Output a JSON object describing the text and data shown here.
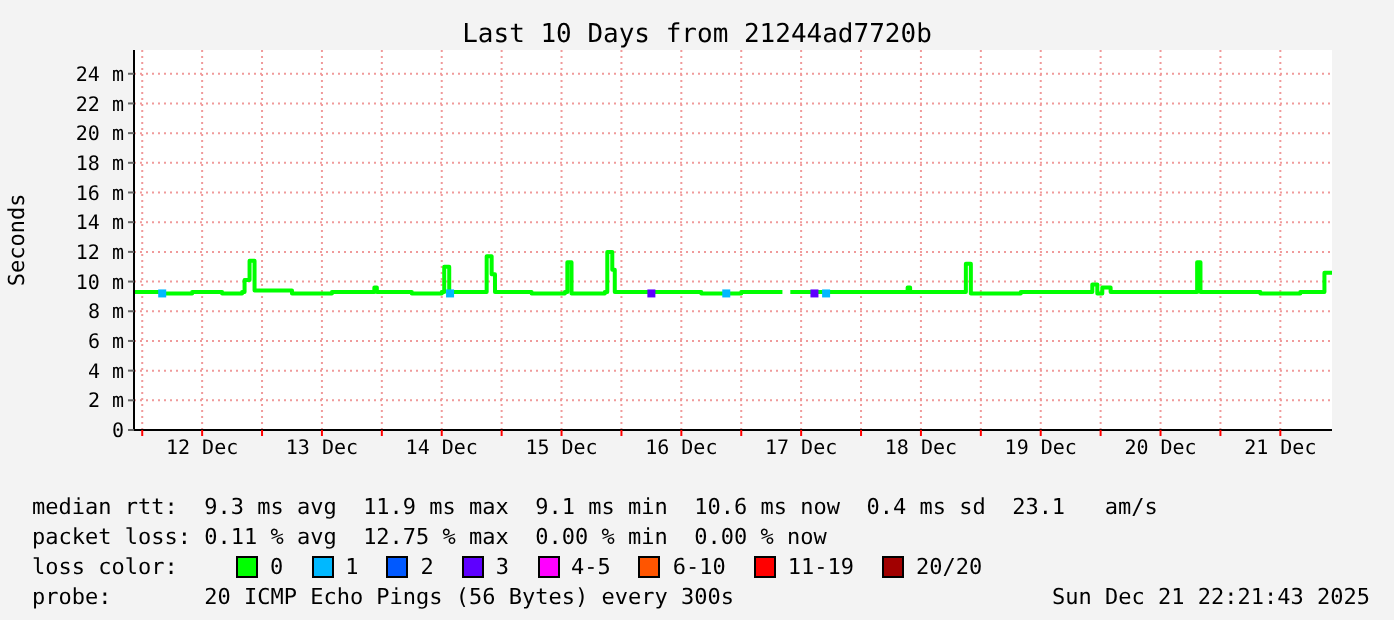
{
  "chart_data": {
    "type": "step",
    "title": "Last 10 Days from 21244ad7720b",
    "ylabel": "Seconds",
    "xlim": [
      "2025-12-11T22:21",
      "2025-12-21T22:21"
    ],
    "xticks": [
      {
        "value": "2025-12-12T00:00",
        "label": null
      },
      {
        "value": "2025-12-12T12:00",
        "label": "12 Dec"
      },
      {
        "value": "2025-12-13T00:00",
        "label": null
      },
      {
        "value": "2025-12-13T12:00",
        "label": "13 Dec"
      },
      {
        "value": "2025-12-14T00:00",
        "label": null
      },
      {
        "value": "2025-12-14T12:00",
        "label": "14 Dec"
      },
      {
        "value": "2025-12-15T00:00",
        "label": null
      },
      {
        "value": "2025-12-15T12:00",
        "label": "15 Dec"
      },
      {
        "value": "2025-12-16T00:00",
        "label": null
      },
      {
        "value": "2025-12-16T12:00",
        "label": "16 Dec"
      },
      {
        "value": "2025-12-17T00:00",
        "label": null
      },
      {
        "value": "2025-12-17T12:00",
        "label": "17 Dec"
      },
      {
        "value": "2025-12-18T00:00",
        "label": null
      },
      {
        "value": "2025-12-18T12:00",
        "label": "18 Dec"
      },
      {
        "value": "2025-12-19T00:00",
        "label": null
      },
      {
        "value": "2025-12-19T12:00",
        "label": "19 Dec"
      },
      {
        "value": "2025-12-20T00:00",
        "label": null
      },
      {
        "value": "2025-12-20T12:00",
        "label": "20 Dec"
      },
      {
        "value": "2025-12-21T00:00",
        "label": null
      },
      {
        "value": "2025-12-21T12:00",
        "label": "21 Dec"
      }
    ],
    "ylim": [
      0,
      25.6
    ],
    "yticks": [
      0,
      {
        "value": 2,
        "label": "2 m"
      },
      {
        "value": 4,
        "label": "4 m"
      },
      {
        "value": 6,
        "label": "6 m"
      },
      {
        "value": 8,
        "label": "8 m"
      },
      {
        "value": 10,
        "label": "10 m"
      },
      {
        "value": 12,
        "label": "12 m"
      },
      {
        "value": 14,
        "label": "14 m"
      },
      {
        "value": 16,
        "label": "16 m"
      },
      {
        "value": 18,
        "label": "18 m"
      },
      {
        "value": 20,
        "label": "20 m"
      },
      {
        "value": 22,
        "label": "22 m"
      },
      {
        "value": 24,
        "label": "24 m"
      }
    ],
    "grid": true,
    "legend": "bottom",
    "legend_title": "loss color:",
    "series": [
      {
        "name": "0",
        "color": "#00ff00",
        "x": [
          "2025-12-11T22:21",
          "2025-12-12T04:00",
          "2025-12-12T10:00",
          "2025-12-12T16:00",
          "2025-12-12T20:00",
          "2025-12-12T20:30",
          "2025-12-12T21:30",
          "2025-12-12T22:30",
          "2025-12-13T06:00",
          "2025-12-13T14:00",
          "2025-12-13T22:00",
          "2025-12-13T22:30",
          "2025-12-13T23:00",
          "2025-12-14T06:00",
          "2025-12-14T12:00",
          "2025-12-14T12:30",
          "2025-12-14T13:30",
          "2025-12-14T20:30",
          "2025-12-14T21:00",
          "2025-12-14T22:00",
          "2025-12-14T22:40",
          "2025-12-15T06:00",
          "2025-12-15T12:40",
          "2025-12-15T13:10",
          "2025-12-15T14:00",
          "2025-12-15T20:40",
          "2025-12-15T21:10",
          "2025-12-15T22:10",
          "2025-12-15T22:40",
          "2025-12-16T08:00",
          "2025-12-16T16:00",
          "2025-12-17T00:00",
          "2025-12-17T08:15",
          "2025-12-17T08:30",
          "2025-12-17T09:50",
          "2025-12-17T16:00",
          "2025-12-18T02:00",
          "2025-12-18T09:00",
          "2025-12-18T09:20",
          "2025-12-18T09:50",
          "2025-12-18T20:40",
          "2025-12-18T21:00",
          "2025-12-18T22:00",
          "2025-12-19T08:00",
          "2025-12-19T16:00",
          "2025-12-19T22:10",
          "2025-12-19T22:20",
          "2025-12-19T23:20",
          "2025-12-20T00:20",
          "2025-12-20T02:00",
          "2025-12-20T10:00",
          "2025-12-20T19:00",
          "2025-12-20T19:20",
          "2025-12-20T20:00",
          "2025-12-21T08:00",
          "2025-12-21T16:00",
          "2025-12-21T20:40",
          "2025-12-21T20:50",
          "2025-12-21T22:21"
        ],
        "values": [
          9.3,
          9.2,
          9.3,
          9.2,
          9.3,
          10.1,
          11.4,
          9.4,
          9.2,
          9.3,
          9.3,
          9.6,
          9.3,
          9.2,
          9.3,
          11.0,
          9.3,
          9.3,
          11.7,
          10.5,
          9.3,
          9.2,
          9.3,
          11.3,
          9.2,
          9.3,
          12.0,
          10.8,
          9.3,
          9.3,
          9.2,
          9.3,
          9.3,
          null,
          9.3,
          9.3,
          9.3,
          9.3,
          9.6,
          9.3,
          9.3,
          11.2,
          9.2,
          9.3,
          9.3,
          9.3,
          9.8,
          9.2,
          9.6,
          9.3,
          9.3,
          9.3,
          11.3,
          9.3,
          9.2,
          9.3,
          9.3,
          10.6,
          10.6
        ]
      },
      {
        "name": "1",
        "type": "scatter",
        "marker": "square",
        "color": "#00b8ff",
        "x": [
          "2025-12-12T04:00",
          "2025-12-14T13:40",
          "2025-12-16T21:00",
          "2025-12-17T17:00"
        ],
        "values": [
          9.2,
          9.2,
          9.2,
          9.2
        ]
      },
      {
        "name": "2",
        "type": "scatter",
        "marker": "square",
        "color": "#0059ff"
      },
      {
        "name": "3",
        "type": "scatter",
        "marker": "square",
        "color": "#5e00ff",
        "x": [
          "2025-12-16T06:00",
          "2025-12-17T14:40"
        ],
        "values": [
          9.2,
          9.2
        ]
      },
      {
        "name": "4-5",
        "type": "scatter",
        "marker": "square",
        "color": "#ff00ff"
      },
      {
        "name": "6-10",
        "type": "scatter",
        "marker": "square",
        "color": "#ff5500"
      },
      {
        "name": "11-19",
        "type": "scatter",
        "marker": "square",
        "color": "#ff0000"
      },
      {
        "name": "20/20",
        "type": "scatter",
        "marker": "square",
        "color": "#a10000"
      }
    ],
    "annotations": [
      "median rtt:  9.3 ms avg  11.9 ms max  9.1 ms min  10.6 ms now  0.4 ms sd  23.1   am/s",
      "packet loss: 0.11 % avg  12.75 % max  0.00 % min  0.00 % now",
      "probe:       20 ICMP Echo Pings (56 Bytes) every 300s",
      "Sun Dec 21 22:21:43 2025"
    ]
  }
}
